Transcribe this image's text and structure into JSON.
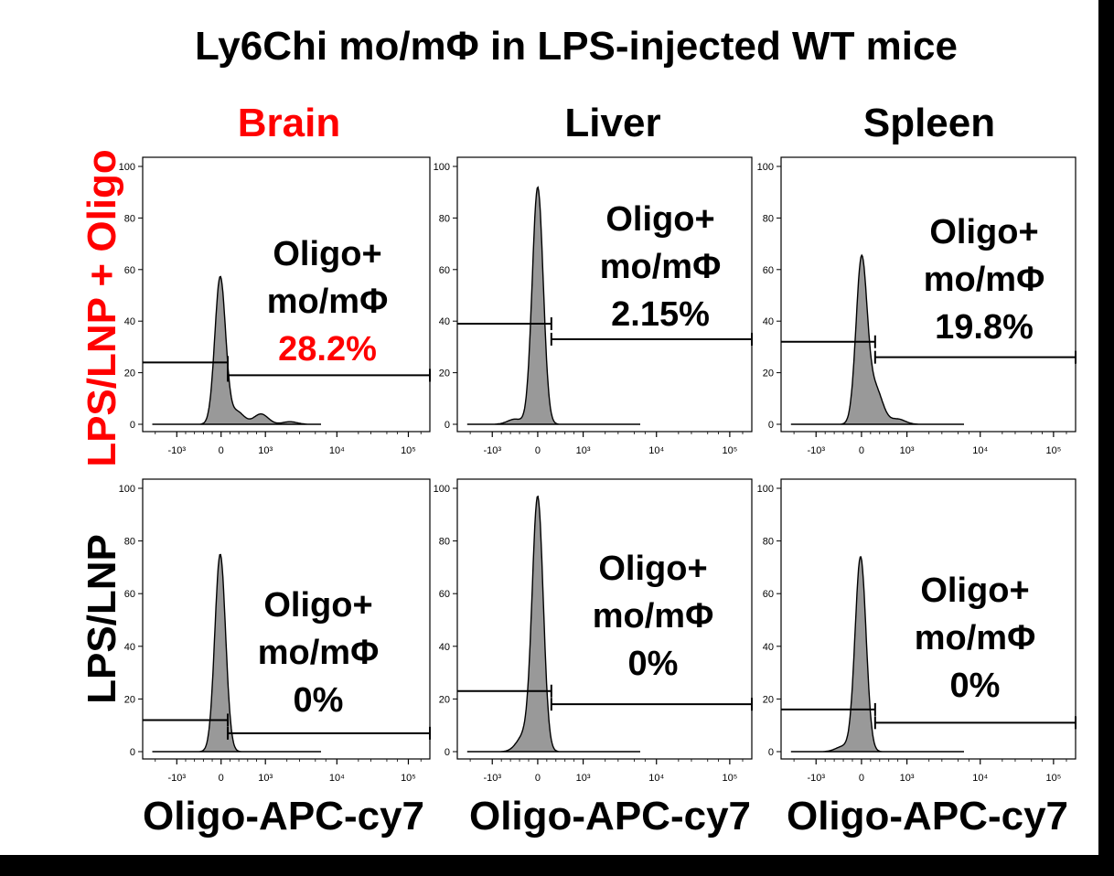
{
  "title": "Ly6Chi mo/mΦ in LPS-injected WT mice",
  "columns": [
    {
      "label": "Brain",
      "color": "#ff0000"
    },
    {
      "label": "Liver",
      "color": "#000000"
    },
    {
      "label": "Spleen",
      "color": "#000000"
    }
  ],
  "rows": [
    {
      "label": "LPS/LNP + Oligo",
      "color": "#ff0000"
    },
    {
      "label": "LPS/LNP",
      "color": "#000000"
    }
  ],
  "x_label": "Oligo-APC-cy7",
  "gate_label_line1": "Oligo+",
  "gate_label_line2": "mo/mΦ",
  "chart_data": {
    "type": "histogram",
    "title": "Ly6Chi mo/mΦ in LPS-injected WT mice",
    "xlabel": "Oligo-APC-cy7",
    "ylabel": "",
    "y_ticks": [
      "0",
      "20",
      "40",
      "60",
      "80",
      "100"
    ],
    "ylim": [
      0,
      100
    ],
    "x_ticks": [
      "-10³",
      "0",
      "10³",
      "10⁴",
      "10⁵"
    ],
    "x_tick_values": [
      -1000,
      0,
      1000,
      10000,
      100000
    ],
    "fill_color": "#999999",
    "panels": [
      {
        "row": "LPS/LNP + Oligo",
        "column": "Brain",
        "oligo_positive_percent": "28.2%",
        "percent_color": "#ff0000",
        "peak_x": -20,
        "peak_height": 57,
        "gate_start_x": 150,
        "gate_level_neg": 24,
        "gate_level_pos": 19,
        "shoulders": [
          {
            "x": 350,
            "height": 5
          },
          {
            "x": 900,
            "height": 4
          },
          {
            "x": 2200,
            "height": 1
          }
        ]
      },
      {
        "row": "LPS/LNP + Oligo",
        "column": "Liver",
        "oligo_positive_percent": "2.15%",
        "percent_color": "#000000",
        "peak_x": 0,
        "peak_height": 92,
        "gate_start_x": 300,
        "gate_level_neg": 39,
        "gate_level_pos": 33,
        "shoulders": [
          {
            "x": -500,
            "height": 2
          }
        ]
      },
      {
        "row": "LPS/LNP + Oligo",
        "column": "Spleen",
        "oligo_positive_percent": "19.8%",
        "percent_color": "#000000",
        "peak_x": 0,
        "peak_height": 63,
        "gate_start_x": 300,
        "gate_level_neg": 32,
        "gate_level_pos": 26,
        "shoulders": [
          {
            "x": 300,
            "height": 14
          },
          {
            "x": 800,
            "height": 2
          }
        ]
      },
      {
        "row": "LPS/LNP",
        "column": "Brain",
        "oligo_positive_percent": "0%",
        "percent_color": "#000000",
        "peak_x": -20,
        "peak_height": 75,
        "gate_start_x": 150,
        "gate_level_neg": 12,
        "gate_level_pos": 7,
        "shoulders": []
      },
      {
        "row": "LPS/LNP",
        "column": "Liver",
        "oligo_positive_percent": "0%",
        "percent_color": "#000000",
        "peak_x": 0,
        "peak_height": 96,
        "gate_start_x": 300,
        "gate_level_neg": 23,
        "gate_level_pos": 18,
        "shoulders": [
          {
            "x": -300,
            "height": 6
          }
        ]
      },
      {
        "row": "LPS/LNP",
        "column": "Spleen",
        "oligo_positive_percent": "0%",
        "percent_color": "#000000",
        "peak_x": -20,
        "peak_height": 74,
        "gate_start_x": 300,
        "gate_level_neg": 16,
        "gate_level_pos": 11,
        "shoulders": [
          {
            "x": -400,
            "height": 2
          }
        ]
      }
    ]
  }
}
